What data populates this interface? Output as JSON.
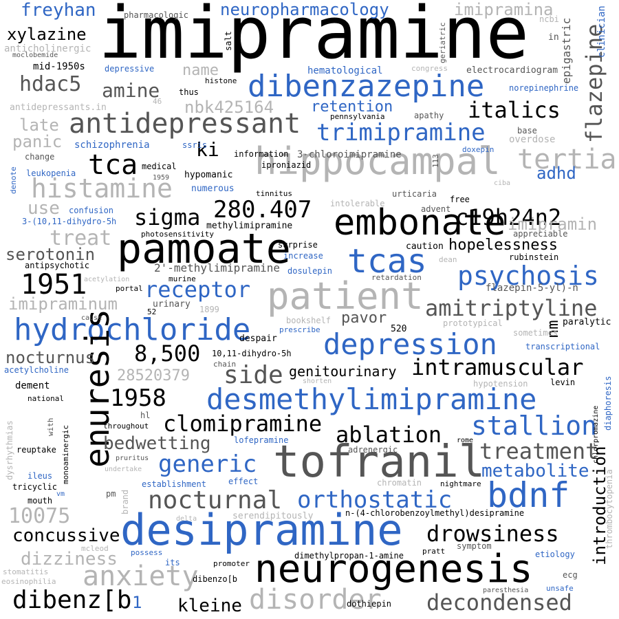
{
  "words": [
    {
      "t": "imipramine",
      "c": "k"
    },
    {
      "t": "hippocampal",
      "c": "g"
    },
    {
      "t": "pamoate",
      "c": "k"
    },
    {
      "t": "embonate",
      "c": "k"
    },
    {
      "t": "desipramine",
      "c": "b"
    },
    {
      "t": "neurogenesis",
      "c": "k"
    },
    {
      "t": "tofranil",
      "c": "d"
    },
    {
      "t": "dibenzazepine",
      "c": "b"
    },
    {
      "t": "patient",
      "c": "g"
    },
    {
      "t": "antidepressant",
      "c": "d"
    },
    {
      "t": "hydrochloride",
      "c": "b"
    },
    {
      "t": "desmethylimipramine",
      "c": "b"
    },
    {
      "t": "depression",
      "c": "b"
    },
    {
      "t": "histamine",
      "c": "g"
    },
    {
      "t": "tcas",
      "c": "b"
    },
    {
      "t": "bdnf",
      "c": "b"
    },
    {
      "t": "enuresis",
      "c": "k"
    },
    {
      "t": "trimipramine",
      "c": "b"
    },
    {
      "t": "tertiary",
      "c": "g"
    },
    {
      "t": "flazepine",
      "c": "d"
    },
    {
      "t": "psychosis",
      "c": "b"
    },
    {
      "t": "amitriptyline",
      "c": "d"
    },
    {
      "t": "intramuscular",
      "c": "k"
    },
    {
      "t": "orthostatic",
      "c": "b"
    },
    {
      "t": "nocturnal",
      "c": "d"
    },
    {
      "t": "clomipramine",
      "c": "k"
    },
    {
      "t": "stallion",
      "c": "b"
    },
    {
      "t": "treatment",
      "c": "d"
    },
    {
      "t": "drowsiness",
      "c": "k"
    },
    {
      "t": "decondensed",
      "c": "d"
    },
    {
      "t": "anxiety",
      "c": "g"
    },
    {
      "t": "disorder",
      "c": "g"
    },
    {
      "t": "dibenz[b",
      "c": "k"
    },
    {
      "t": "c19h24n2",
      "c": "k"
    },
    {
      "t": "280.407",
      "c": "k"
    },
    {
      "t": "sigma",
      "c": "k"
    },
    {
      "t": "1951",
      "c": "k"
    },
    {
      "t": "1958",
      "c": "k"
    },
    {
      "t": "8,500",
      "c": "k"
    },
    {
      "t": "tca",
      "c": "k"
    },
    {
      "t": "italics",
      "c": "k"
    },
    {
      "t": "receptor",
      "c": "b"
    },
    {
      "t": "ablation",
      "c": "k"
    },
    {
      "t": "generic",
      "c": "b"
    },
    {
      "t": "metabolite",
      "c": "b"
    },
    {
      "t": "side",
      "c": "d"
    },
    {
      "t": "concussive",
      "c": "k"
    },
    {
      "t": "kleine",
      "c": "k"
    },
    {
      "t": "10075",
      "c": "g"
    },
    {
      "t": "dizziness",
      "c": "g"
    },
    {
      "t": "nocturnus",
      "c": "d"
    },
    {
      "t": "bedwetting",
      "c": "d"
    },
    {
      "t": "retention",
      "c": "b"
    },
    {
      "t": "amine",
      "c": "d"
    },
    {
      "t": "hdac5",
      "c": "d"
    },
    {
      "t": "xylazine",
      "c": "k"
    },
    {
      "t": "freyhan",
      "c": "b"
    },
    {
      "t": "neuropharmacology",
      "c": "b"
    },
    {
      "t": "imipramina",
      "c": "g"
    },
    {
      "t": "imipramin",
      "c": "g"
    },
    {
      "t": "imipraminum",
      "c": "g"
    },
    {
      "t": "serotonin",
      "c": "d"
    },
    {
      "t": "treat",
      "c": "g"
    },
    {
      "t": "use",
      "c": "g"
    },
    {
      "t": "panic",
      "c": "g"
    },
    {
      "t": "late",
      "c": "g"
    },
    {
      "t": "name",
      "c": "g"
    },
    {
      "t": "nbk425164",
      "c": "g"
    },
    {
      "t": "ki",
      "c": "k"
    },
    {
      "t": "adhd",
      "c": "b"
    },
    {
      "t": "hopelessness",
      "c": "k"
    },
    {
      "t": "introduction",
      "c": "k"
    },
    {
      "t": "28520379",
      "c": "g"
    },
    {
      "t": "genitourinary",
      "c": "k"
    },
    {
      "t": "pavor",
      "c": "d"
    },
    {
      "t": "nm",
      "c": "k"
    },
    {
      "t": "epigastric",
      "c": "d"
    },
    {
      "t": "clinician",
      "c": "b"
    },
    {
      "t": "mid-1950s",
      "c": "k"
    },
    {
      "t": "moclobemide",
      "c": "d"
    },
    {
      "t": "anticholinergic",
      "c": "g"
    },
    {
      "t": "pharmacologic",
      "c": "d"
    },
    {
      "t": "salt",
      "c": "k"
    },
    {
      "t": "histone",
      "c": "k"
    },
    {
      "t": "geriatric",
      "c": "d"
    },
    {
      "t": "ncbi",
      "c": "g"
    },
    {
      "t": "in",
      "c": "d"
    },
    {
      "t": "depressive",
      "c": "b"
    },
    {
      "t": "hematological",
      "c": "b"
    },
    {
      "t": "congress",
      "c": "g"
    },
    {
      "t": "electrocardiogram",
      "c": "d"
    },
    {
      "t": "thus",
      "c": "k"
    },
    {
      "t": "46",
      "c": "g"
    },
    {
      "t": "antidepressants.in",
      "c": "g"
    },
    {
      "t": "pennsylvania",
      "c": "k"
    },
    {
      "t": "apathy",
      "c": "d"
    },
    {
      "t": "norepinephrine",
      "c": "b"
    },
    {
      "t": "base",
      "c": "d"
    },
    {
      "t": "overdose",
      "c": "g"
    },
    {
      "t": "schizophrenia",
      "c": "b"
    },
    {
      "t": "ssris",
      "c": "b"
    },
    {
      "t": "information",
      "c": "k"
    },
    {
      "t": "3-chloroimipramine",
      "c": "d"
    },
    {
      "t": "113",
      "c": "d"
    },
    {
      "t": "doxepin",
      "c": "b"
    },
    {
      "t": "change",
      "c": "d"
    },
    {
      "t": "medical",
      "c": "k"
    },
    {
      "t": "iproniazid",
      "c": "k"
    },
    {
      "t": "hypomanic",
      "c": "k"
    },
    {
      "t": "leukopenia",
      "c": "b"
    },
    {
      "t": "1959",
      "c": "d"
    },
    {
      "t": "denote",
      "c": "b"
    },
    {
      "t": "numerous",
      "c": "b"
    },
    {
      "t": "tinnitus",
      "c": "k"
    },
    {
      "t": "urticaria",
      "c": "d"
    },
    {
      "t": "ciba",
      "c": "g"
    },
    {
      "t": "intolerable",
      "c": "g"
    },
    {
      "t": "free",
      "c": "k"
    },
    {
      "t": "confusion",
      "c": "b"
    },
    {
      "t": "3-(10,11-dihydro-5h",
      "c": "b"
    },
    {
      "t": "methylimipramine",
      "c": "k"
    },
    {
      "t": "advent",
      "c": "d"
    },
    {
      "t": "photosensitivity",
      "c": "k"
    },
    {
      "t": "appreciable",
      "c": "d"
    },
    {
      "t": "surprise",
      "c": "k"
    },
    {
      "t": "caution",
      "c": "k"
    },
    {
      "t": "increase",
      "c": "b"
    },
    {
      "t": "dean",
      "c": "g"
    },
    {
      "t": "antipsychotic",
      "c": "k"
    },
    {
      "t": "rubinstein",
      "c": "k"
    },
    {
      "t": "2'-methylimipramine",
      "c": "d"
    },
    {
      "t": "acetylation",
      "c": "g"
    },
    {
      "t": "murine",
      "c": "k"
    },
    {
      "t": "dosulepin",
      "c": "b"
    },
    {
      "t": "retardation",
      "c": "d"
    },
    {
      "t": "portal",
      "c": "k"
    },
    {
      "t": "flazepin-5-yl)-n",
      "c": "d"
    },
    {
      "t": "urinary",
      "c": "d"
    },
    {
      "t": "52",
      "c": "k"
    },
    {
      "t": "1899",
      "c": "g"
    },
    {
      "t": "cause",
      "c": "d"
    },
    {
      "t": "bookshelf",
      "c": "g"
    },
    {
      "t": "prescribe",
      "c": "b"
    },
    {
      "t": "prototypical",
      "c": "g"
    },
    {
      "t": "paralytic",
      "c": "k"
    },
    {
      "t": "sometimes",
      "c": "g"
    },
    {
      "t": "520",
      "c": "k"
    },
    {
      "t": "despair",
      "c": "k"
    },
    {
      "t": "10,11-dihydro-5h",
      "c": "k"
    },
    {
      "t": "transcriptional",
      "c": "b"
    },
    {
      "t": "chain",
      "c": "d"
    },
    {
      "t": "acetylcholine",
      "c": "b"
    },
    {
      "t": "dement",
      "c": "k"
    },
    {
      "t": "national",
      "c": "k"
    },
    {
      "t": "shorten",
      "c": "g"
    },
    {
      "t": "hypotension",
      "c": "g"
    },
    {
      "t": "levin",
      "c": "k"
    },
    {
      "t": "diaphoresis",
      "c": "b"
    },
    {
      "t": "dysrhythmias",
      "c": "g"
    },
    {
      "t": "with",
      "c": "d"
    },
    {
      "t": "monoaminergic",
      "c": "k"
    },
    {
      "t": "hl",
      "c": "d"
    },
    {
      "t": "throughout",
      "c": "k"
    },
    {
      "t": "lofepramine",
      "c": "b"
    },
    {
      "t": "rome",
      "c": "k"
    },
    {
      "t": "chlorpromazine",
      "c": "k"
    },
    {
      "t": "thrombocytopenia",
      "c": "g"
    },
    {
      "t": "reuptake",
      "c": "k"
    },
    {
      "t": "pruritus",
      "c": "d"
    },
    {
      "t": "adrenergic",
      "c": "d"
    },
    {
      "t": "undertake",
      "c": "g"
    },
    {
      "t": "ileus",
      "c": "b"
    },
    {
      "t": "tricyclic",
      "c": "k"
    },
    {
      "t": "mouth",
      "c": "k"
    },
    {
      "t": "vm",
      "c": "b"
    },
    {
      "t": "establishment",
      "c": "b"
    },
    {
      "t": "effect",
      "c": "b"
    },
    {
      "t": "chromatin",
      "c": "g"
    },
    {
      "t": "nightmare",
      "c": "k"
    },
    {
      "t": "pm",
      "c": "d"
    },
    {
      "t": "brand",
      "c": "g"
    },
    {
      "t": "delta",
      "c": "g"
    },
    {
      "t": "serendipitously",
      "c": "g"
    },
    {
      "t": "n-(4-chlorobenzoylmethyl)desipramine",
      "c": "k"
    },
    {
      "t": "mcleod",
      "c": "g"
    },
    {
      "t": "possess",
      "c": "b"
    },
    {
      "t": "dimethylpropan-1-amine",
      "c": "k"
    },
    {
      "t": "pratt",
      "c": "k"
    },
    {
      "t": "symptom",
      "c": "d"
    },
    {
      "t": "etiology",
      "c": "b"
    },
    {
      "t": "its",
      "c": "b"
    },
    {
      "t": "promoter",
      "c": "k"
    },
    {
      "t": "dibenzo[b",
      "c": "k"
    },
    {
      "t": "ecg",
      "c": "d"
    },
    {
      "t": "stomatitis",
      "c": "g"
    },
    {
      "t": "eosinophilia",
      "c": "g"
    },
    {
      "t": "1",
      "c": "b"
    },
    {
      "t": "dothiepin",
      "c": "k"
    },
    {
      "t": "paresthesia",
      "c": "d"
    },
    {
      "t": "unsafe",
      "c": "b"
    }
  ]
}
